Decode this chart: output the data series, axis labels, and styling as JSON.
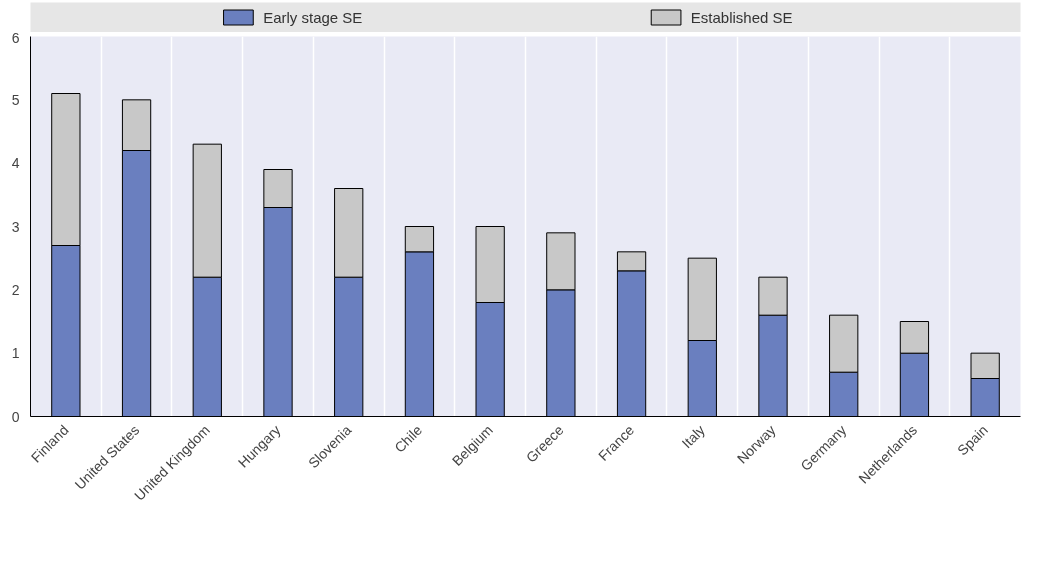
{
  "chart_data": {
    "type": "bar",
    "stacked": true,
    "categories": [
      "Finland",
      "United States",
      "United Kingdom",
      "Hungary",
      "Slovenia",
      "Chile",
      "Belgium",
      "Greece",
      "France",
      "Italy",
      "Norway",
      "Germany",
      "Netherlands",
      "Spain"
    ],
    "series": [
      {
        "name": "Early stage SE",
        "color": "#6a7fbf",
        "values": [
          2.7,
          4.2,
          2.2,
          3.3,
          2.2,
          2.6,
          1.8,
          2.0,
          2.3,
          1.2,
          1.6,
          0.7,
          1.0,
          0.6
        ]
      },
      {
        "name": "Established SE",
        "color": "#c8c8c8",
        "values": [
          2.4,
          0.8,
          2.1,
          0.6,
          1.4,
          0.4,
          1.2,
          0.9,
          0.3,
          1.3,
          0.6,
          0.9,
          0.5,
          0.4
        ]
      }
    ],
    "ylim": [
      0,
      6
    ],
    "yticks": [
      0,
      1,
      2,
      3,
      4,
      5,
      6
    ],
    "grid": "x",
    "legend": "top"
  }
}
